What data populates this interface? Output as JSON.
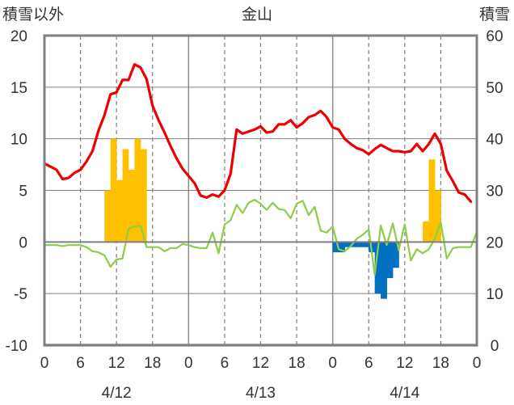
{
  "chart_data": {
    "type": "bar+line",
    "title": "金山",
    "left_axis": {
      "label": "積雪以外",
      "range": [
        -10,
        20
      ],
      "ticks": [
        "20",
        "15",
        "10",
        "5",
        "0",
        "-5",
        "-10"
      ]
    },
    "right_axis": {
      "label": "積雪",
      "range": [
        0,
        60
      ],
      "ticks": [
        "60",
        "50",
        "40",
        "30",
        "20",
        "10",
        "0"
      ]
    },
    "x_hour_ticks": [
      "0",
      "6",
      "12",
      "18",
      "0",
      "6",
      "12",
      "18",
      "0",
      "6",
      "12",
      "18",
      "0"
    ],
    "x_dates": [
      "4/12",
      "4/13",
      "4/14"
    ],
    "grid": true,
    "colors": {
      "temperature": "#ee0000",
      "humidity_line": "#8ccd4a",
      "bar_positive": "#ffc000",
      "bar_negative": "#0070c0",
      "snow_depth": "#7030a0",
      "axis": "#808080",
      "gridline": "#7f7f7f"
    },
    "series": [
      {
        "type": "line",
        "axis": "left",
        "x": [
          0,
          1,
          2,
          3,
          4,
          5,
          6,
          7,
          8,
          9,
          10,
          11,
          12,
          13,
          14,
          15,
          16,
          17,
          18,
          19,
          20,
          21,
          22,
          23,
          24,
          25,
          26,
          27,
          28,
          29,
          30,
          31,
          32,
          33,
          34,
          35,
          36,
          37,
          38,
          39,
          40,
          41,
          42,
          43,
          44,
          45,
          46,
          47,
          48,
          49,
          50,
          51,
          52,
          53,
          54,
          55,
          56,
          57,
          58,
          59,
          60,
          61,
          62,
          63,
          64,
          65,
          66,
          67,
          68,
          69,
          70,
          71
        ],
        "values": [
          7.6,
          7.3,
          7.0,
          6.1,
          6.2,
          6.7,
          7.0,
          7.8,
          8.8,
          10.8,
          12.3,
          14.3,
          14.5,
          15.7,
          15.7,
          17.2,
          16.9,
          15.8,
          13.2,
          11.8,
          10.6,
          9.3,
          8.1,
          7.1,
          6.4,
          5.7,
          4.5,
          4.3,
          4.6,
          4.4,
          5.0,
          6.6,
          10.9,
          10.5,
          10.7,
          10.9,
          11.2,
          10.6,
          10.7,
          11.4,
          11.4,
          11.8,
          11.1,
          11.5,
          12.1,
          12.3,
          12.7,
          12.1,
          11.1,
          10.9,
          10.0,
          9.5,
          9.1,
          8.9,
          8.5,
          9.0,
          9.4,
          9.1,
          8.8,
          8.8,
          8.7,
          8.8,
          9.5,
          8.8,
          9.5,
          10.5,
          9.5,
          6.9,
          5.9,
          4.8,
          4.6,
          3.9
        ]
      },
      {
        "type": "line",
        "axis": "left",
        "x": [
          0,
          1,
          2,
          3,
          4,
          5,
          6,
          7,
          8,
          9,
          10,
          11,
          12,
          13,
          14,
          15,
          16,
          17,
          18,
          19,
          20,
          21,
          22,
          23,
          24,
          25,
          26,
          27,
          28,
          29,
          30,
          31,
          32,
          33,
          34,
          35,
          36,
          37,
          38,
          39,
          40,
          41,
          42,
          43,
          44,
          45,
          46,
          47,
          48,
          49,
          50,
          51,
          52,
          53,
          54,
          55,
          56,
          57,
          58,
          59,
          60,
          61,
          62,
          63,
          64,
          65,
          66,
          67,
          68,
          69,
          70,
          71,
          72
        ],
        "values": [
          -0.3,
          -0.3,
          -0.3,
          -0.4,
          -0.3,
          -0.3,
          -0.3,
          -0.5,
          -0.9,
          -1.0,
          -1.3,
          -2.4,
          -1.7,
          -1.6,
          1.3,
          1.5,
          1.6,
          -0.5,
          -0.5,
          -0.5,
          -0.9,
          -0.6,
          -0.6,
          -0.2,
          -0.3,
          -0.5,
          -0.6,
          -0.6,
          0.9,
          -1.1,
          1.7,
          2.1,
          3.6,
          2.8,
          3.8,
          4.1,
          3.7,
          3.1,
          3.8,
          3.2,
          3.1,
          2.3,
          3.7,
          4.0,
          2.6,
          3.4,
          1.1,
          0.9,
          1.5,
          -0.7,
          -0.9,
          -0.4,
          0.3,
          0.7,
          1.2,
          -3.2,
          1.6,
          -0.3,
          1.8,
          -0.8,
          1.7,
          -1.8,
          -0.7,
          -1.1,
          -0.7,
          0.3,
          1.9,
          -1.6,
          -0.6,
          -0.5,
          -0.5,
          -0.5,
          1.0
        ]
      },
      {
        "type": "bar",
        "axis": "left",
        "x": [
          11,
          12,
          13,
          14,
          15,
          16,
          17,
          18,
          49,
          50,
          51,
          52,
          53,
          54,
          55,
          56,
          57,
          58,
          59,
          64,
          65,
          66
        ],
        "values": [
          5.0,
          10.0,
          6.0,
          9.0,
          7.0,
          10.0,
          9.0,
          0,
          -1.0,
          -1.0,
          -0.5,
          -0.5,
          -0.5,
          -0.5,
          -1.0,
          -5.0,
          -5.5,
          -3.5,
          -2.5,
          2.0,
          8.0,
          5.0
        ]
      },
      {
        "type": "line",
        "axis": "right",
        "x": [
          0,
          72
        ],
        "values": [
          0,
          0
        ]
      }
    ]
  }
}
